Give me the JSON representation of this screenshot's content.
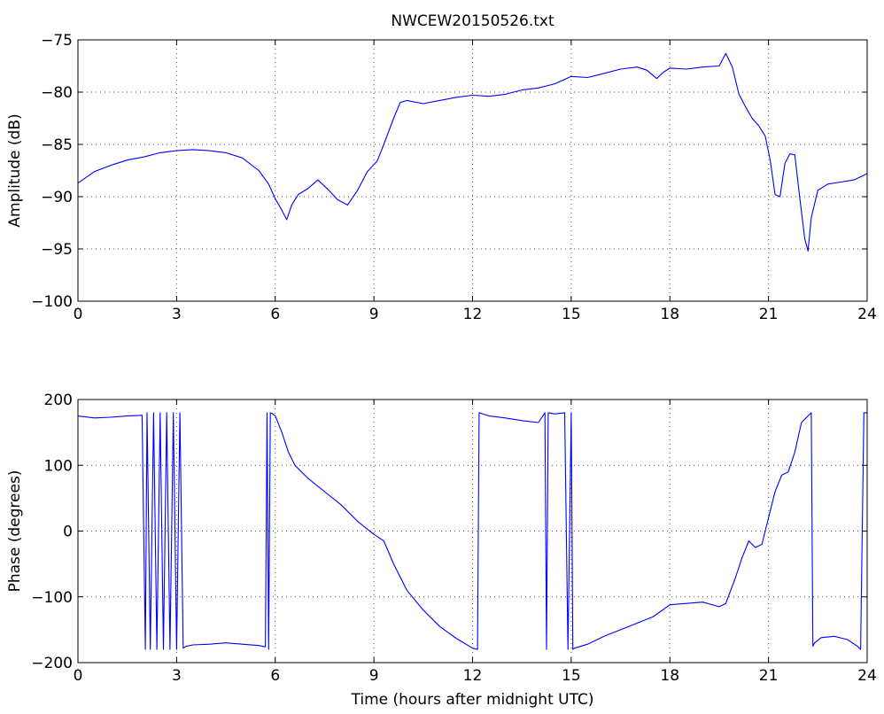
{
  "chart_data": [
    {
      "type": "line",
      "title": "NWCEW20150526.txt",
      "xlabel": "",
      "ylabel": "Amplitude (dB)",
      "xlim": [
        0,
        24
      ],
      "ylim": [
        -100,
        -75
      ],
      "xticks": [
        0,
        3,
        6,
        9,
        12,
        15,
        18,
        21,
        24
      ],
      "yticks": [
        -100,
        -95,
        -90,
        -85,
        -80,
        -75
      ],
      "grid": true,
      "color": "#0000ff",
      "series": [
        {
          "x": [
            0,
            0.5,
            1,
            1.5,
            2,
            2.5,
            3,
            3.5,
            4,
            4.5,
            5,
            5.5,
            5.8,
            6,
            6.2,
            6.35,
            6.5,
            6.7,
            7,
            7.3,
            7.6,
            7.9,
            8.2,
            8.5,
            8.8,
            9.1,
            9.3,
            9.6,
            9.8,
            10,
            10.5,
            11,
            11.5,
            12,
            12.5,
            13,
            13.5,
            14,
            14.5,
            15,
            15.5,
            16,
            16.5,
            17,
            17.3,
            17.6,
            17.8,
            18,
            18.5,
            19,
            19.5,
            19.7,
            19.9,
            20.1,
            20.3,
            20.5,
            20.7,
            20.9,
            21.05,
            21.2,
            21.35,
            21.5,
            21.65,
            21.8,
            21.95,
            22.1,
            22.2,
            22.3,
            22.5,
            22.8,
            23.2,
            23.6,
            24
          ],
          "y": [
            -88.7,
            -87.6,
            -87,
            -86.5,
            -86.2,
            -85.8,
            -85.6,
            -85.5,
            -85.6,
            -85.8,
            -86.3,
            -87.5,
            -88.8,
            -90.2,
            -91.3,
            -92.2,
            -90.8,
            -89.8,
            -89.2,
            -88.4,
            -89.3,
            -90.3,
            -90.8,
            -89.4,
            -87.6,
            -86.6,
            -85,
            -82.5,
            -81,
            -80.8,
            -81.1,
            -80.8,
            -80.5,
            -80.3,
            -80.4,
            -80.2,
            -79.8,
            -79.6,
            -79.2,
            -78.5,
            -78.6,
            -78.2,
            -77.8,
            -77.6,
            -77.9,
            -78.7,
            -78.1,
            -77.7,
            -77.8,
            -77.6,
            -77.5,
            -76.3,
            -77.6,
            -80.2,
            -81.4,
            -82.5,
            -83.2,
            -84.2,
            -86.5,
            -89.8,
            -90,
            -86.8,
            -85.9,
            -86,
            -90.1,
            -94,
            -95.2,
            -92,
            -89.4,
            -88.8,
            -88.6,
            -88.4,
            -87.8
          ]
        }
      ]
    },
    {
      "type": "line",
      "title": "",
      "xlabel": "Time (hours after midnight UTC)",
      "ylabel": "Phase (degrees)",
      "xlim": [
        0,
        24
      ],
      "ylim": [
        -200,
        200
      ],
      "xticks": [
        0,
        3,
        6,
        9,
        12,
        15,
        18,
        21,
        24
      ],
      "yticks": [
        -200,
        -100,
        0,
        100,
        200
      ],
      "grid": true,
      "color": "#0000ff",
      "series": [
        {
          "x": [
            0,
            0.5,
            1,
            1.5,
            1.95,
            2.05,
            2.1,
            2.2,
            2.3,
            2.4,
            2.5,
            2.6,
            2.7,
            2.8,
            2.9,
            3,
            3.1,
            3.2,
            3.3,
            3.5,
            4,
            4.5,
            5,
            5.5,
            5.7,
            5.75,
            5.8,
            5.85,
            5.9,
            6,
            6.2,
            6.4,
            6.6,
            7,
            7.5,
            8,
            8.5,
            9,
            9.3,
            9.6,
            10,
            10.5,
            11,
            11.5,
            12,
            12.15,
            12.2,
            12.5,
            13,
            13.5,
            14,
            14.2,
            14.25,
            14.3,
            14.5,
            14.8,
            14.9,
            15,
            15.05,
            15.1,
            15.5,
            16,
            16.5,
            17,
            17.5,
            18,
            18.5,
            19,
            19.5,
            19.7,
            20,
            20.2,
            20.4,
            20.6,
            20.8,
            21,
            21.2,
            21.4,
            21.6,
            21.8,
            22,
            22.3,
            22.35,
            22.4,
            22.6,
            23,
            23.4,
            23.7,
            23.8,
            23.9,
            24
          ],
          "y": [
            175,
            172,
            173,
            175,
            176,
            -180,
            180,
            -180,
            180,
            -180,
            180,
            -180,
            180,
            -180,
            180,
            -180,
            180,
            -178,
            -175,
            -173,
            -172,
            -170,
            -172,
            -174,
            -176,
            180,
            -180,
            180,
            179,
            175,
            150,
            120,
            100,
            80,
            60,
            40,
            15,
            -5,
            -15,
            -50,
            -90,
            -120,
            -145,
            -163,
            -178,
            -180,
            180,
            175,
            172,
            168,
            165,
            180,
            -180,
            180,
            178,
            180,
            -180,
            180,
            -180,
            -178,
            -172,
            -160,
            -150,
            -140,
            -130,
            -112,
            -110,
            -108,
            -115,
            -110,
            -70,
            -40,
            -15,
            -25,
            -20,
            20,
            60,
            85,
            90,
            120,
            165,
            180,
            -175,
            -170,
            -162,
            -160,
            -165,
            -175,
            -180,
            180,
            180
          ]
        }
      ]
    }
  ]
}
